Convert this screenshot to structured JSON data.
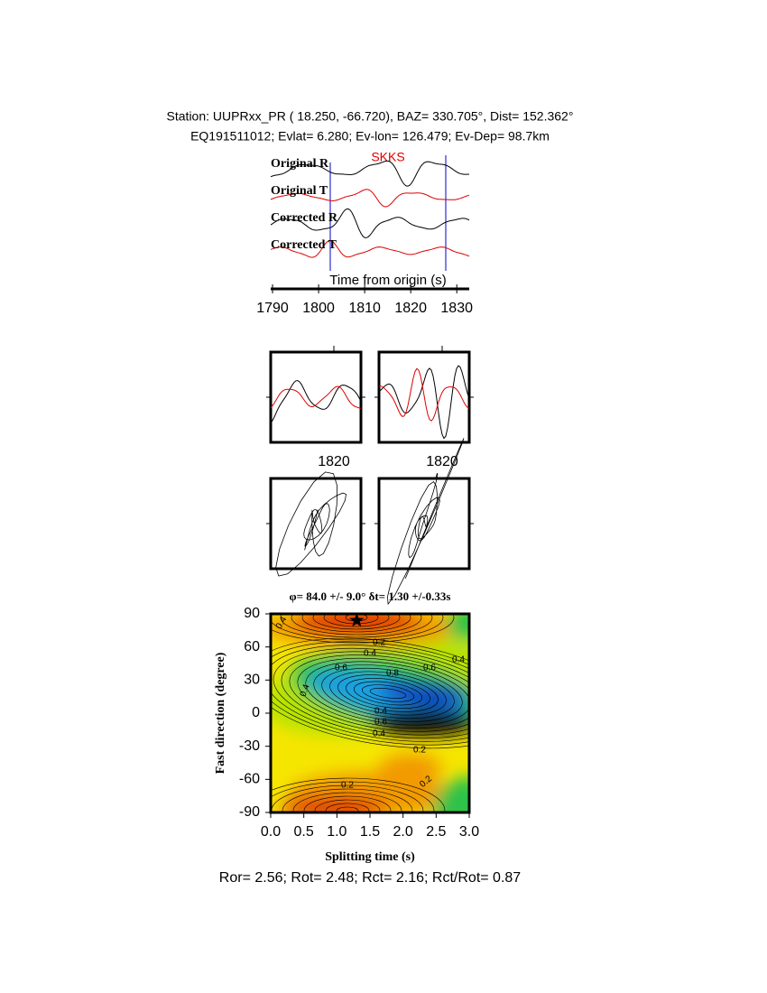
{
  "header": {
    "station": "Station: UUPRxx_PR (  18.250,  -66.720), BAZ=  330.705°, Dist=  152.362°",
    "event": "EQ191511012; Evlat=   6.280; Ev-lon= 126.479; Ev-Dep= 98.7km"
  },
  "waveforms": {
    "traces": [
      "Original R",
      "Original T",
      "Corrected R",
      "Corrected T"
    ],
    "phase": "SKKS",
    "xlabel": "Time from origin (s)",
    "xlim": [
      1789.6,
      1832.7
    ],
    "xticks": [
      1790,
      1800,
      1810,
      1820,
      1830
    ]
  },
  "windows": {
    "xticks": [
      1820,
      1820
    ]
  },
  "grid_search": {
    "title": "φ= 84.0 +/- 9.0° δt= 1.30 +/-0.33s",
    "xlabel": "Splitting time (s)",
    "ylabel": "Fast direction (degree)",
    "xlim": [
      0,
      3
    ],
    "ylim": [
      -90,
      90
    ],
    "xticks": [
      {
        "value": 0,
        "label": "0.0"
      },
      0.5,
      {
        "value": 1,
        "label": "1.0"
      },
      1.5,
      {
        "value": 2,
        "label": "2.0"
      },
      2.5,
      {
        "value": 3,
        "label": "3.0"
      }
    ],
    "yticks": [
      90,
      60,
      30,
      0,
      -30,
      -60,
      -90
    ],
    "best": {
      "x": 1.3,
      "y": 84
    },
    "contour_labels": [
      "0.4",
      "0.2",
      "0.4",
      "0.6",
      "0.8",
      "0.6",
      "0.4",
      "0.4",
      "0.4",
      "0.6",
      "0.4",
      "0.2",
      "0.2",
      "0.2"
    ]
  },
  "footer": "Ror= 2.56; Rot= 2.48; Rct= 2.16; Rct/Rot= 0.87"
}
